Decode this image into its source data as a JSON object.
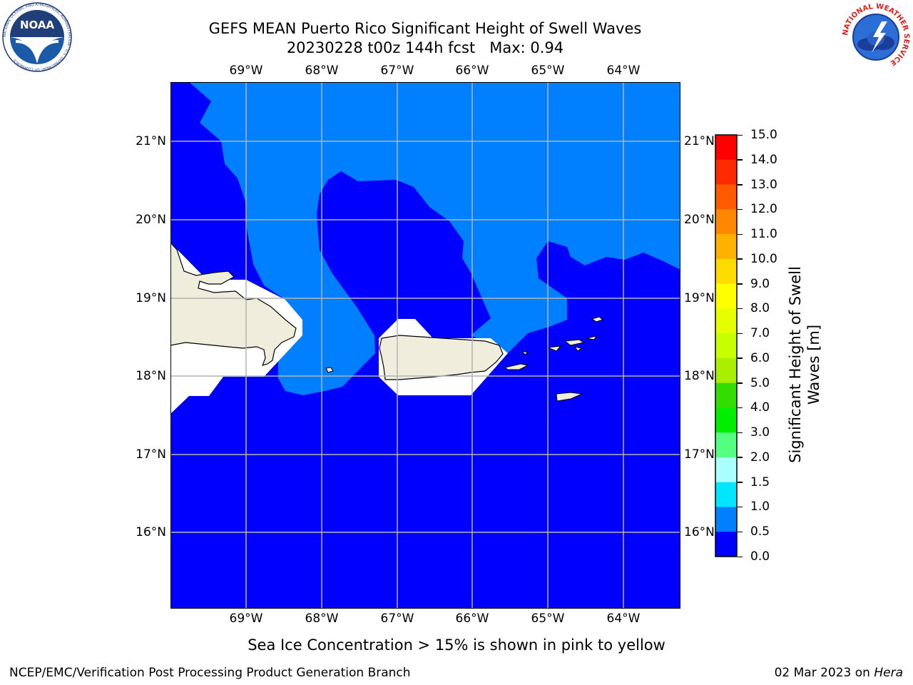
{
  "header": {
    "title": "GEFS MEAN Puerto Rico Significant Height of Swell Waves",
    "subtitle": "20230228 t00z 144h fcst   Max: 0.94"
  },
  "logos": {
    "noaa_text": "NOAA",
    "noaa_ring": "NATIONAL OCEANIC AND ATMOSPHERIC ADMINISTRATION · U.S. DEPARTMENT OF COMMERCE",
    "nws_ring": "NATIONAL WEATHER SERVICE"
  },
  "map": {
    "lon_labels": [
      "69°W",
      "68°W",
      "67°W",
      "66°W",
      "65°W",
      "64°W"
    ],
    "lat_labels": [
      "21°N",
      "20°N",
      "19°N",
      "18°N",
      "17°N",
      "16°N"
    ],
    "colors": {
      "swell_0_0_5": "#0000ff",
      "swell_0_5_1_0": "#0080ff",
      "land": "#efeedc",
      "ice_mask": "#ffffff",
      "grid": "#b4b4b4"
    }
  },
  "colorbar": {
    "label": "Significant Height of Swell Waves [m]",
    "ticks": [
      "15.0",
      "14.0",
      "13.0",
      "12.0",
      "11.0",
      "10.0",
      "9.0",
      "8.0",
      "7.0",
      "6.0",
      "5.0",
      "4.0",
      "3.0",
      "2.0",
      "1.5",
      "1.0",
      "0.5",
      "0.0"
    ],
    "colors": [
      "#ff0000",
      "#ff2000",
      "#ff5500",
      "#ff8000",
      "#ffa000",
      "#ffc000",
      "#ffee00",
      "#ffff00",
      "#e6ff00",
      "#c8ff00",
      "#ccff00",
      "#55dd00",
      "#00ee00",
      "#00ff00",
      "#55ff88",
      "#aaffff",
      "#44ffff",
      "#00ffff",
      "#00eeff",
      "#0080ff",
      "#0000ff"
    ]
  },
  "note": "Sea Ice Concentration > 15% is shown in pink to yellow",
  "footer": {
    "left": "NCEP/EMC/Verification Post Processing Product Generation Branch",
    "date": "02 Mar 2023 on ",
    "host": "Hera"
  }
}
